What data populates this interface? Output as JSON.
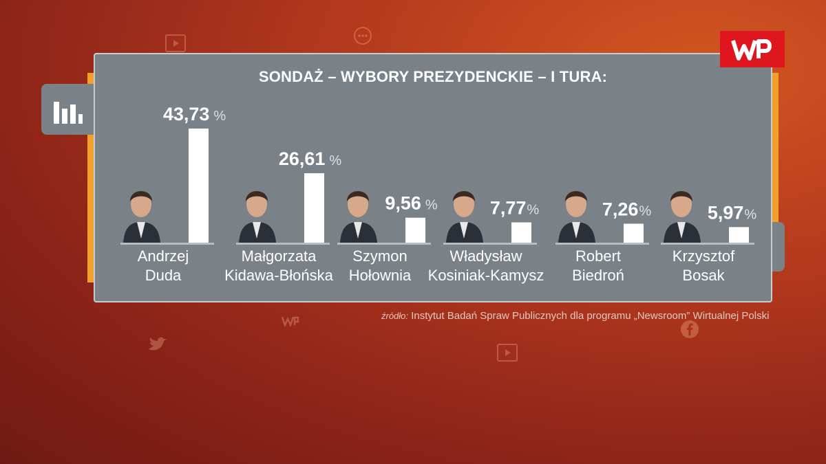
{
  "title": "SONDAŻ – WYBORY PREZYDENCKIE – I TURA:",
  "logo_text": "WP",
  "source_lead": "źródło:",
  "source_text": "Instytut Badań Spraw Publicznych dla programu „Newsroom” Wirtualnej Polski",
  "colors": {
    "panel": "#7a8287",
    "bar": "#ffffff",
    "accent": "#f2a02c",
    "logo": "#e0161f"
  },
  "chart_data": {
    "type": "bar",
    "categories": [
      [
        "Andrzej",
        "Duda"
      ],
      [
        "Małgorzata",
        "Kidawa-Błońska"
      ],
      [
        "Szymon",
        "Hołownia"
      ],
      [
        "Władysław",
        "Kosiniak-Kamysz"
      ],
      [
        "Robert",
        "Biedroń"
      ],
      [
        "Krzysztof",
        "Bosak"
      ]
    ],
    "values": [
      43.73,
      26.61,
      9.56,
      7.77,
      7.26,
      5.97
    ],
    "value_labels": [
      "43,73",
      "26,61",
      "9,56",
      "7,77",
      "7,26",
      "5,97"
    ],
    "unit": "%",
    "ylim": [
      0,
      50
    ],
    "grid": false
  }
}
